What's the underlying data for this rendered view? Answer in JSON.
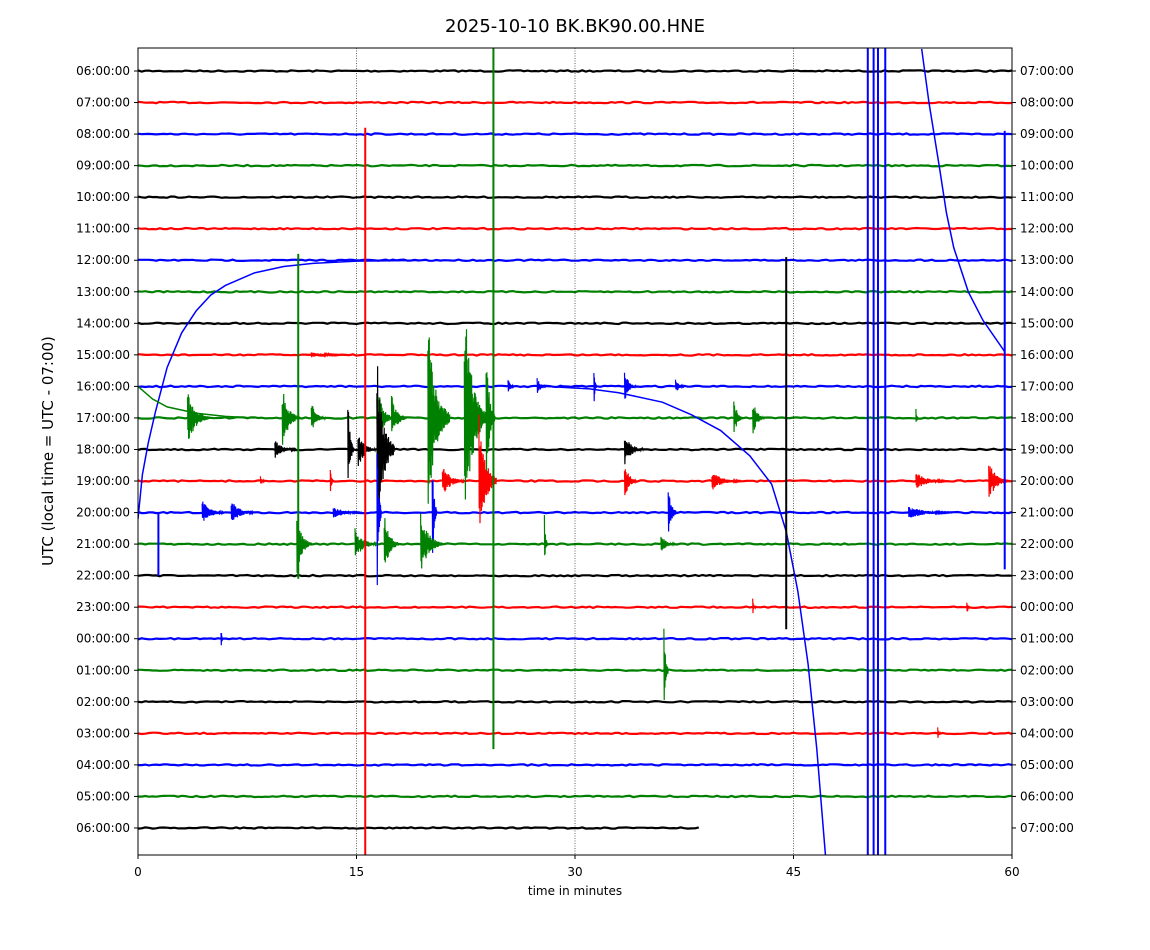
{
  "chart_data": {
    "type": "line",
    "title": "2025-10-10 BK.BK90.00.HNE",
    "xlabel": "time in minutes",
    "ylabel": "UTC (local time = UTC - 07:00)",
    "xlim": [
      0,
      60
    ],
    "xticks": [
      0,
      15,
      30,
      45,
      60
    ],
    "grid_x": [
      15,
      30,
      45
    ],
    "colors": [
      "#000000",
      "#ff0000",
      "#0000ff",
      "#008000"
    ],
    "left_labels": [
      "06:00:00",
      "07:00:00",
      "08:00:00",
      "09:00:00",
      "10:00:00",
      "11:00:00",
      "12:00:00",
      "13:00:00",
      "14:00:00",
      "15:00:00",
      "16:00:00",
      "17:00:00",
      "18:00:00",
      "19:00:00",
      "20:00:00",
      "21:00:00",
      "22:00:00",
      "23:00:00",
      "00:00:00",
      "01:00:00",
      "02:00:00",
      "03:00:00",
      "04:00:00",
      "05:00:00",
      "06:00:00"
    ],
    "right_labels": [
      "07:00:00",
      "08:00:00",
      "09:00:00",
      "10:00:00",
      "11:00:00",
      "12:00:00",
      "13:00:00",
      "14:00:00",
      "15:00:00",
      "16:00:00",
      "17:00:00",
      "18:00:00",
      "19:00:00",
      "20:00:00",
      "21:00:00",
      "22:00:00",
      "23:00:00",
      "00:00:00",
      "01:00:00",
      "02:00:00",
      "03:00:00",
      "04:00:00",
      "05:00:00",
      "06:00:00",
      "07:00:00"
    ],
    "last_row_end_minute": 38.5,
    "curves": [
      {
        "row": 14,
        "points": [
          [
            0,
            14.2
          ],
          [
            0.3,
            12.8
          ],
          [
            0.7,
            11.8
          ],
          [
            1.2,
            10.8
          ],
          [
            2,
            9.4
          ],
          [
            3,
            8.3
          ],
          [
            4,
            7.6
          ],
          [
            5,
            7.1
          ],
          [
            6,
            6.8
          ],
          [
            8,
            6.4
          ],
          [
            10,
            6.2
          ],
          [
            12,
            6.1
          ],
          [
            15,
            6.03
          ],
          [
            20,
            6.0
          ]
        ]
      },
      {
        "row": 10,
        "points": [
          [
            28,
            10
          ],
          [
            31,
            10.08
          ],
          [
            33,
            10.2
          ],
          [
            36,
            10.5
          ],
          [
            38,
            10.9
          ],
          [
            40,
            11.4
          ],
          [
            42,
            12.2
          ],
          [
            43.5,
            13.1
          ],
          [
            44.5,
            14.6
          ],
          [
            45.3,
            16.5
          ],
          [
            46,
            18.8
          ],
          [
            46.6,
            21.5
          ],
          [
            47.2,
            24.9
          ]
        ]
      },
      {
        "row": 2,
        "points": [
          [
            53.8,
            -0.7
          ],
          [
            54.3,
            1
          ],
          [
            55,
            3
          ],
          [
            55.5,
            4.5
          ],
          [
            56,
            5.6
          ],
          [
            57,
            7
          ],
          [
            58,
            7.9
          ],
          [
            59.5,
            8.9
          ]
        ]
      },
      {
        "row": 11,
        "points": [
          [
            0,
            10
          ],
          [
            1,
            10.4
          ],
          [
            2,
            10.65
          ],
          [
            4,
            10.85
          ],
          [
            6,
            10.95
          ],
          [
            8,
            11
          ]
        ]
      }
    ],
    "spikes": [
      {
        "row": 3,
        "minute": 24.4,
        "top": -0.8,
        "bottom": 21.5
      },
      {
        "row": 1,
        "minute": 15.6,
        "top": 1.8,
        "bottom": 24.9
      },
      {
        "row": 12,
        "minute": 44.5,
        "top": 5.9,
        "bottom": 17.7
      },
      {
        "row": 14,
        "minute": 59.5,
        "top": 1.9,
        "bottom": 15.8
      },
      {
        "row": 10,
        "minute": 50.1,
        "top": -0.8,
        "bottom": 24.9
      },
      {
        "row": 10,
        "minute": 50.5,
        "top": -0.8,
        "bottom": 24.9
      },
      {
        "row": 10,
        "minute": 50.8,
        "top": -0.8,
        "bottom": 24.9
      },
      {
        "row": 10,
        "minute": 51.3,
        "top": -0.8,
        "bottom": 24.9
      },
      {
        "row": 11,
        "minute": 11.0,
        "top": 5.8,
        "bottom": 16.1
      },
      {
        "row": 14,
        "minute": 1.4,
        "top": 14,
        "bottom": 16.0
      }
    ],
    "bursts": [
      {
        "row": 9,
        "minute": 12,
        "amp": 0.08,
        "dur": 3
      },
      {
        "row": 10,
        "minute": 25.5,
        "amp": 0.3,
        "dur": 0.4
      },
      {
        "row": 10,
        "minute": 27.5,
        "amp": 0.3,
        "dur": 0.6
      },
      {
        "row": 10,
        "minute": 31.4,
        "amp": 0.7,
        "dur": 0.2
      },
      {
        "row": 10,
        "minute": 33.5,
        "amp": 0.5,
        "dur": 0.8
      },
      {
        "row": 10,
        "minute": 37,
        "amp": 0.25,
        "dur": 0.6
      },
      {
        "row": 11,
        "minute": 3.5,
        "amp": 0.9,
        "dur": 1.5
      },
      {
        "row": 11,
        "minute": 10,
        "amp": 1.0,
        "dur": 1.2
      },
      {
        "row": 11,
        "minute": 12,
        "amp": 0.5,
        "dur": 1
      },
      {
        "row": 11,
        "minute": 16.5,
        "amp": 1.3,
        "dur": 1
      },
      {
        "row": 11,
        "minute": 17.5,
        "amp": 0.8,
        "dur": 1
      },
      {
        "row": 11,
        "minute": 20,
        "amp": 3.2,
        "dur": 1.5
      },
      {
        "row": 11,
        "minute": 22.5,
        "amp": 4.0,
        "dur": 1.5
      },
      {
        "row": 11,
        "minute": 24,
        "amp": 2.4,
        "dur": 0.6
      },
      {
        "row": 11,
        "minute": 41,
        "amp": 0.7,
        "dur": 0.6
      },
      {
        "row": 11,
        "minute": 42.3,
        "amp": 0.6,
        "dur": 0.8
      },
      {
        "row": 11,
        "minute": 53.5,
        "amp": 0.3,
        "dur": 0.2
      },
      {
        "row": 12,
        "minute": 9.5,
        "amp": 0.3,
        "dur": 1.5
      },
      {
        "row": 12,
        "minute": 14.5,
        "amp": 1.8,
        "dur": 0.4
      },
      {
        "row": 12,
        "minute": 15.2,
        "amp": 0.6,
        "dur": 1.2
      },
      {
        "row": 12,
        "minute": 16.5,
        "amp": 3.0,
        "dur": 1.2
      },
      {
        "row": 12,
        "minute": 33.5,
        "amp": 0.5,
        "dur": 1.3
      },
      {
        "row": 13,
        "minute": 8.5,
        "amp": 0.2,
        "dur": 0.3
      },
      {
        "row": 13,
        "minute": 13.3,
        "amp": 0.6,
        "dur": 0.2
      },
      {
        "row": 13,
        "minute": 21,
        "amp": 0.5,
        "dur": 1.5
      },
      {
        "row": 13,
        "minute": 23.5,
        "amp": 2.2,
        "dur": 1.2
      },
      {
        "row": 13,
        "minute": 33.5,
        "amp": 0.7,
        "dur": 0.8
      },
      {
        "row": 13,
        "minute": 39.5,
        "amp": 0.3,
        "dur": 2
      },
      {
        "row": 13,
        "minute": 53.5,
        "amp": 0.3,
        "dur": 2
      },
      {
        "row": 13,
        "minute": 58.5,
        "amp": 0.6,
        "dur": 1.5
      },
      {
        "row": 14,
        "minute": 4.5,
        "amp": 0.4,
        "dur": 1.5
      },
      {
        "row": 14,
        "minute": 6.5,
        "amp": 0.4,
        "dur": 1.5
      },
      {
        "row": 14,
        "minute": 13.5,
        "amp": 0.2,
        "dur": 2
      },
      {
        "row": 14,
        "minute": 16.5,
        "amp": 3.0,
        "dur": 0.3
      },
      {
        "row": 14,
        "minute": 20.3,
        "amp": 2.2,
        "dur": 0.3
      },
      {
        "row": 14,
        "minute": 36.5,
        "amp": 0.8,
        "dur": 0.6
      },
      {
        "row": 14,
        "minute": 53,
        "amp": 0.2,
        "dur": 3
      },
      {
        "row": 15,
        "minute": 11,
        "amp": 1.0,
        "dur": 1
      },
      {
        "row": 15,
        "minute": 15,
        "amp": 0.5,
        "dur": 1.5
      },
      {
        "row": 15,
        "minute": 17,
        "amp": 1.0,
        "dur": 1
      },
      {
        "row": 15,
        "minute": 19.5,
        "amp": 1.0,
        "dur": 1.5
      },
      {
        "row": 15,
        "minute": 28,
        "amp": 1.0,
        "dur": 0.2
      },
      {
        "row": 15,
        "minute": 36,
        "amp": 0.3,
        "dur": 1
      },
      {
        "row": 17,
        "minute": 42.3,
        "amp": 0.3,
        "dur": 0.2
      },
      {
        "row": 17,
        "minute": 57,
        "amp": 0.3,
        "dur": 0.2
      },
      {
        "row": 18,
        "minute": 5.8,
        "amp": 0.3,
        "dur": 0.2
      },
      {
        "row": 19,
        "minute": 36.2,
        "amp": 1.7,
        "dur": 0.3
      },
      {
        "row": 21,
        "minute": 55,
        "amp": 0.2,
        "dur": 0.2
      }
    ]
  }
}
